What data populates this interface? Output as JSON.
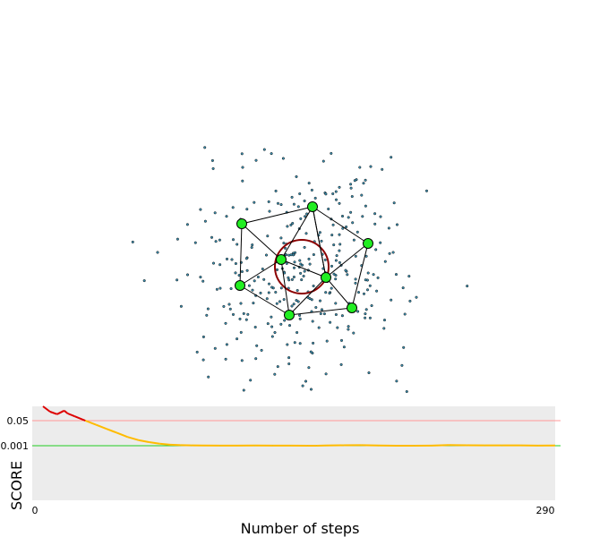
{
  "chart_data": {
    "type": "line",
    "xlabel": "Number of steps",
    "ylabel": "SCORE",
    "x_range": [
      0,
      290
    ],
    "x_tick_labels": [
      "0",
      "290"
    ],
    "threshold_labels": [
      "0.05",
      "0.001"
    ],
    "thresholds": [
      0.05,
      0.001
    ],
    "colors": {
      "plot_background": "#ececec",
      "threshold_high": "#ff9999",
      "threshold_low": "#22cc22",
      "score_above_high": "#dd0000",
      "score_mid": "#ffbb00",
      "score_low": "#22cc22",
      "node_fill": "#22ee22",
      "circle": "#8b0000"
    },
    "series": [
      {
        "values": [
          [
            0,
            0.09
          ],
          [
            4,
            0.075
          ],
          [
            8,
            0.068
          ],
          [
            12,
            0.078
          ],
          [
            14,
            0.07
          ],
          [
            18,
            0.062
          ],
          [
            24,
            0.05
          ],
          [
            30,
            0.042
          ],
          [
            36,
            0.034
          ],
          [
            42,
            0.026
          ],
          [
            48,
            0.018
          ],
          [
            54,
            0.012
          ],
          [
            60,
            0.008
          ],
          [
            66,
            0.005
          ],
          [
            72,
            0.003
          ],
          [
            78,
            0.002
          ],
          [
            84,
            0.0016
          ],
          [
            90,
            0.0014
          ],
          [
            100,
            0.0013
          ],
          [
            110,
            0.0013
          ],
          [
            120,
            0.0014
          ],
          [
            130,
            0.0012
          ],
          [
            140,
            0.0012
          ],
          [
            150,
            0.0011
          ],
          [
            155,
            0.001
          ],
          [
            160,
            0.0014
          ],
          [
            170,
            0.0018
          ],
          [
            180,
            0.0022
          ],
          [
            190,
            0.0014
          ],
          [
            200,
            0.0011
          ],
          [
            210,
            0.001
          ],
          [
            220,
            0.0012
          ],
          [
            230,
            0.0023
          ],
          [
            240,
            0.0018
          ],
          [
            250,
            0.0016
          ],
          [
            260,
            0.0017
          ],
          [
            270,
            0.0017
          ],
          [
            280,
            0.0013
          ],
          [
            290,
            0.0014
          ]
        ]
      }
    ]
  }
}
